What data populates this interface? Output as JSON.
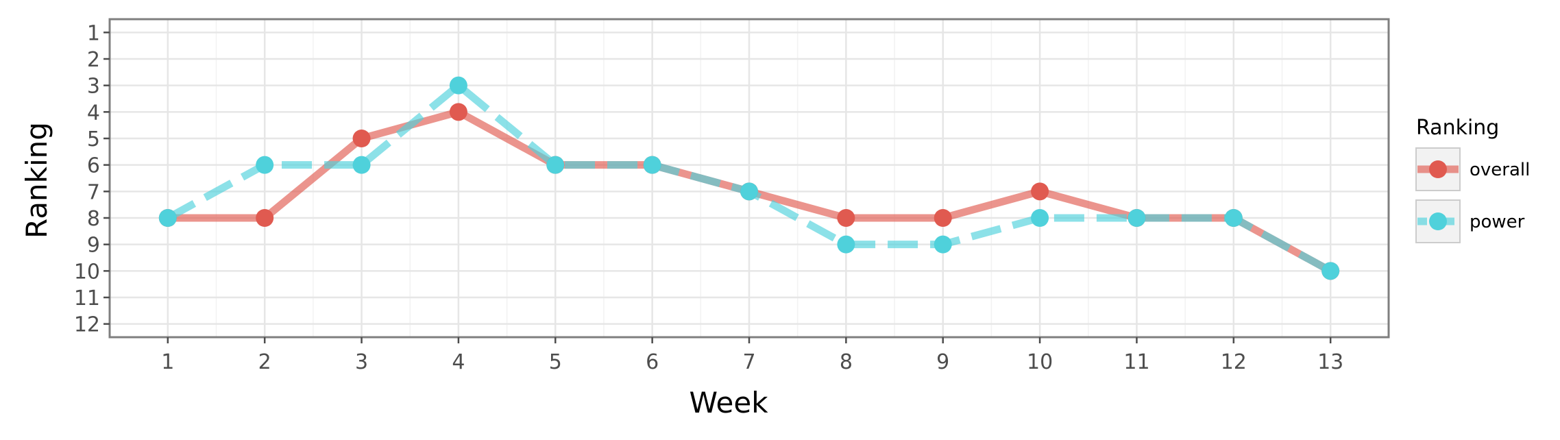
{
  "chart_data": {
    "type": "line",
    "title": "",
    "xlabel": "Week",
    "ylabel": "Ranking",
    "x": [
      1,
      2,
      3,
      4,
      5,
      6,
      7,
      8,
      9,
      10,
      11,
      12,
      13
    ],
    "x_tick_labels": [
      "1",
      "2",
      "3",
      "4",
      "5",
      "6",
      "7",
      "8",
      "9",
      "10",
      "11",
      "12",
      "13"
    ],
    "y_tick_labels": [
      "1",
      "2",
      "3",
      "4",
      "5",
      "6",
      "7",
      "8",
      "9",
      "10",
      "11",
      "12"
    ],
    "xlim": [
      0.4,
      13.6
    ],
    "ylim": [
      12.5,
      0.5
    ],
    "y_reversed": true,
    "grid": true,
    "legend": {
      "title": "Ranking",
      "position": "right"
    },
    "series": [
      {
        "name": "overall",
        "color": "#e05a50",
        "line_style": "solid",
        "values": [
          8,
          8,
          5,
          4,
          6,
          6,
          7,
          8,
          8,
          7,
          8,
          8,
          10
        ]
      },
      {
        "name": "power",
        "color": "#4fd1db",
        "line_style": "dashed",
        "values": [
          8,
          6,
          6,
          3,
          6,
          6,
          7,
          9,
          9,
          8,
          8,
          8,
          10
        ]
      }
    ]
  }
}
